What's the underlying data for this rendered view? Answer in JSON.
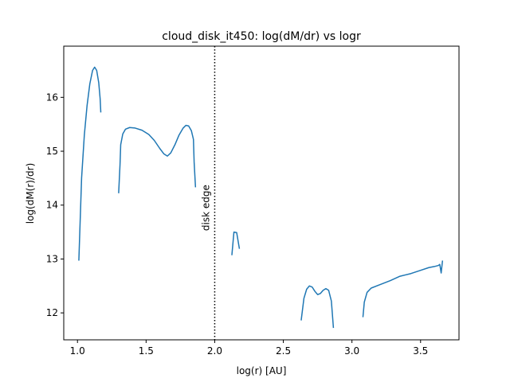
{
  "chart_data": {
    "type": "line",
    "title": "cloud_disk_it450: log(dM/dr) vs logr",
    "xlabel": "log(r) [AU]",
    "ylabel": "log(dM(r)/dr)",
    "xlim": [
      0.9,
      3.78
    ],
    "ylim": [
      11.5,
      16.95
    ],
    "x_ticks": [
      1.0,
      1.5,
      2.0,
      2.5,
      3.0,
      3.5
    ],
    "x_tick_labels": [
      "1.0",
      "1.5",
      "2.0",
      "2.5",
      "3.0",
      "3.5"
    ],
    "y_ticks": [
      12,
      13,
      14,
      15,
      16
    ],
    "y_tick_labels": [
      "12",
      "13",
      "14",
      "15",
      "16"
    ],
    "grid": false,
    "line_color": "#1f77b4",
    "series": [
      {
        "segments": [
          [
            [
              1.01,
              12.97
            ],
            [
              1.03,
              14.5
            ],
            [
              1.05,
              15.3
            ],
            [
              1.07,
              15.85
            ],
            [
              1.09,
              16.25
            ],
            [
              1.11,
              16.5
            ],
            [
              1.125,
              16.56
            ],
            [
              1.14,
              16.5
            ],
            [
              1.155,
              16.27
            ],
            [
              1.165,
              15.98
            ],
            [
              1.17,
              15.72
            ]
          ],
          [
            [
              1.3,
              14.22
            ],
            [
              1.31,
              14.75
            ],
            [
              1.315,
              15.12
            ],
            [
              1.33,
              15.32
            ],
            [
              1.35,
              15.41
            ],
            [
              1.38,
              15.44
            ],
            [
              1.42,
              15.43
            ],
            [
              1.47,
              15.39
            ],
            [
              1.52,
              15.31
            ],
            [
              1.56,
              15.2
            ],
            [
              1.6,
              15.05
            ],
            [
              1.63,
              14.95
            ],
            [
              1.655,
              14.91
            ],
            [
              1.68,
              14.97
            ],
            [
              1.71,
              15.12
            ],
            [
              1.74,
              15.3
            ],
            [
              1.77,
              15.43
            ],
            [
              1.79,
              15.48
            ],
            [
              1.81,
              15.47
            ],
            [
              1.83,
              15.38
            ],
            [
              1.845,
              15.22
            ],
            [
              1.85,
              14.8
            ],
            [
              1.86,
              14.33
            ]
          ],
          [
            [
              2.125,
              13.07
            ],
            [
              2.14,
              13.5
            ],
            [
              2.16,
              13.49
            ],
            [
              2.18,
              13.19
            ]
          ],
          [
            [
              2.63,
              11.86
            ],
            [
              2.65,
              12.27
            ],
            [
              2.67,
              12.44
            ],
            [
              2.69,
              12.5
            ],
            [
              2.71,
              12.48
            ],
            [
              2.73,
              12.4
            ],
            [
              2.75,
              12.34
            ],
            [
              2.77,
              12.36
            ],
            [
              2.79,
              12.42
            ],
            [
              2.81,
              12.45
            ],
            [
              2.83,
              12.42
            ],
            [
              2.85,
              12.22
            ],
            [
              2.865,
              11.72
            ]
          ],
          [
            [
              3.08,
              11.92
            ],
            [
              3.09,
              12.2
            ],
            [
              3.11,
              12.38
            ],
            [
              3.14,
              12.46
            ],
            [
              3.2,
              12.52
            ],
            [
              3.28,
              12.6
            ],
            [
              3.35,
              12.68
            ],
            [
              3.43,
              12.73
            ],
            [
              3.5,
              12.79
            ],
            [
              3.56,
              12.84
            ],
            [
              3.6,
              12.86
            ],
            [
              3.63,
              12.88
            ],
            [
              3.64,
              12.9
            ],
            [
              3.65,
              12.74
            ],
            [
              3.66,
              12.97
            ]
          ]
        ]
      }
    ],
    "vline": {
      "x": 2.0,
      "style": "dotted",
      "label": "disk edge",
      "label_y": 13.95
    }
  }
}
